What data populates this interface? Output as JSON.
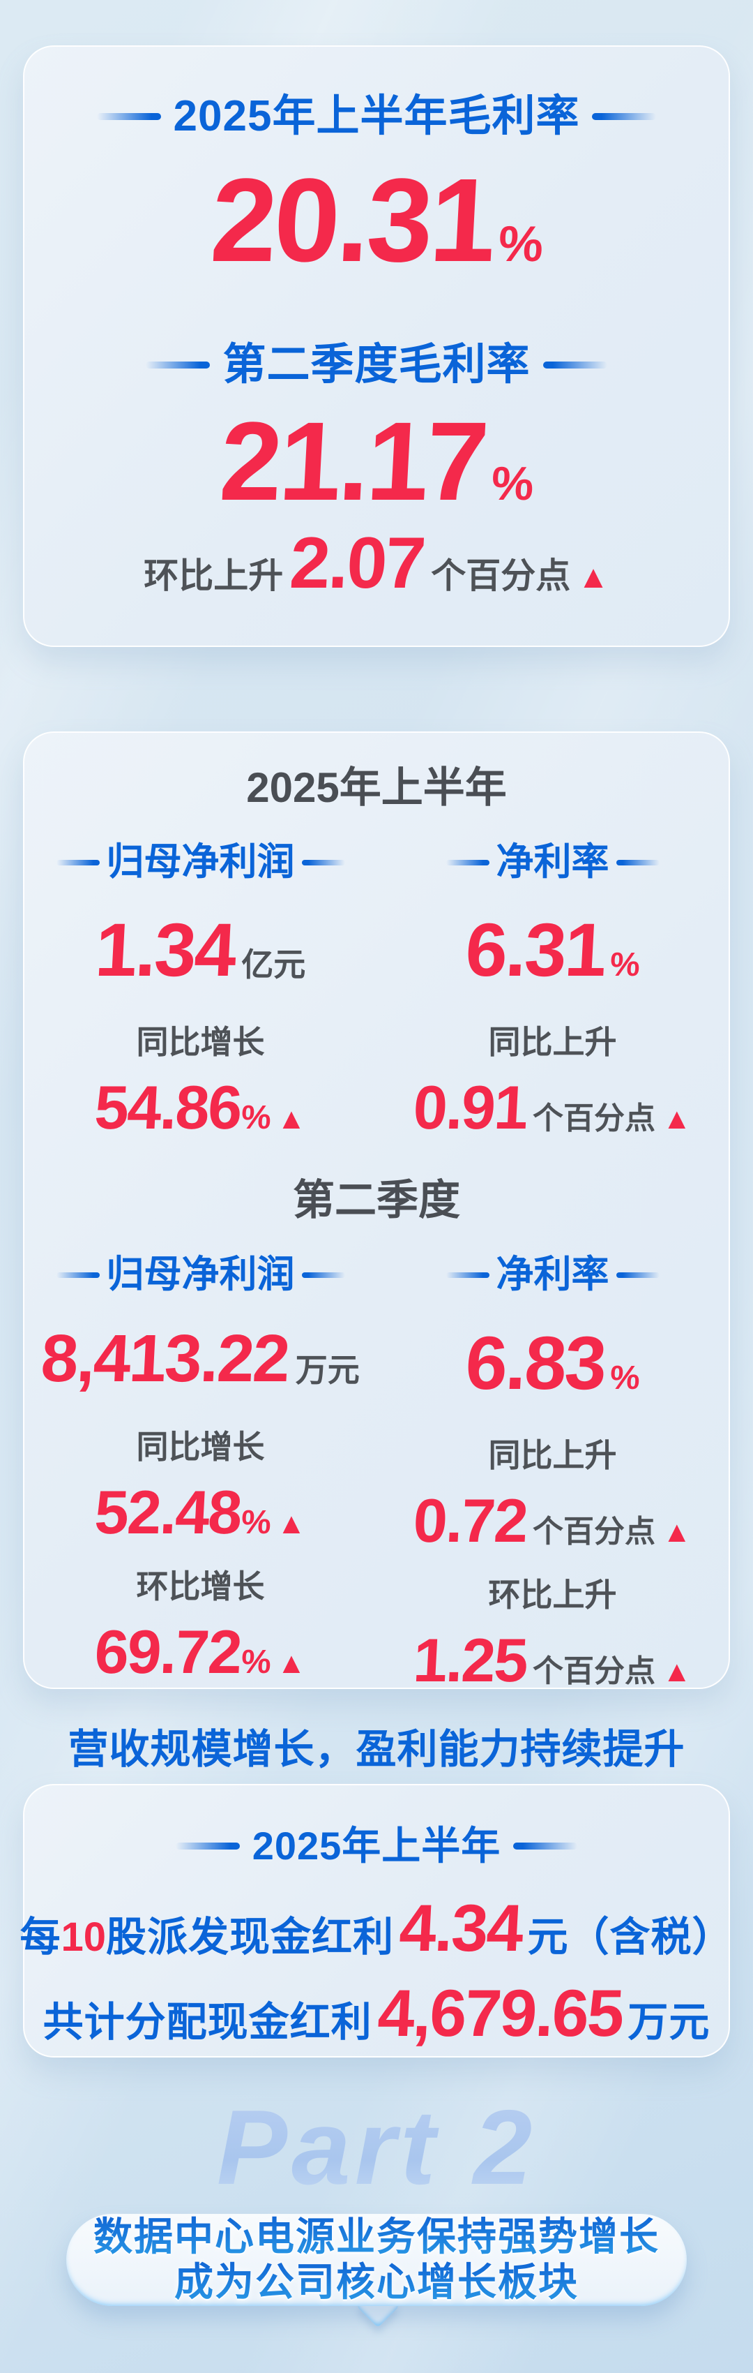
{
  "colors": {
    "blue": "#0a64d8",
    "red": "#f4294b",
    "gray": "#4e5257",
    "page_bg": "#d5e5f1",
    "card_bg": "#e6eef6"
  },
  "symbols": {
    "up_triangle": "▲"
  },
  "card1": {
    "title1": "2025年上半年毛利率",
    "value1": "20.31",
    "unit1": "%",
    "title2": "第二季度毛利率",
    "value2": "21.17",
    "unit2": "%",
    "delta": {
      "prefix": "环比上升",
      "value": "2.07",
      "suffix": "个百分点"
    }
  },
  "card2": {
    "h1_title": "2025年上半年",
    "h1_left": {
      "title": "归母净利润",
      "value": "1.34",
      "unit": "亿元",
      "sub_label": "同比增长",
      "sub_value": "54.86",
      "sub_unit": "%"
    },
    "h1_right": {
      "title": "净利率",
      "value": "6.31",
      "unit": "%",
      "sub_label": "同比上升",
      "sub_value": "0.91",
      "sub_unit": "个百分点"
    },
    "q2_title": "第二季度",
    "q2_left": {
      "title": "归母净利润",
      "value": "8,413.22",
      "unit": "万元",
      "sub1_label": "同比增长",
      "sub1_value": "52.48",
      "sub1_unit": "%",
      "sub2_label": "环比增长",
      "sub2_value": "69.72",
      "sub2_unit": "%"
    },
    "q2_right": {
      "title": "净利率",
      "value": "6.83",
      "unit": "%",
      "sub1_label": "同比上升",
      "sub1_value": "0.72",
      "sub1_unit": "个百分点",
      "sub2_label": "环比上升",
      "sub2_value": "1.25",
      "sub2_unit": "个百分点"
    },
    "footer": "营收规模增长，盈利能力持续提升"
  },
  "card3": {
    "title": "2025年上半年",
    "line1": {
      "pre": "每",
      "highlight": "10",
      "mid": "股派发现金红利",
      "value": "4.34",
      "unit": "元（含税）"
    },
    "line2": {
      "pre": "共计分配现金红利",
      "value": "4,679.65",
      "unit": "万元"
    }
  },
  "part2": {
    "watermark": "Part 2",
    "bubble_line1": "数据中心电源业务保持强势增长",
    "bubble_line2": "成为公司核心增长板块"
  }
}
